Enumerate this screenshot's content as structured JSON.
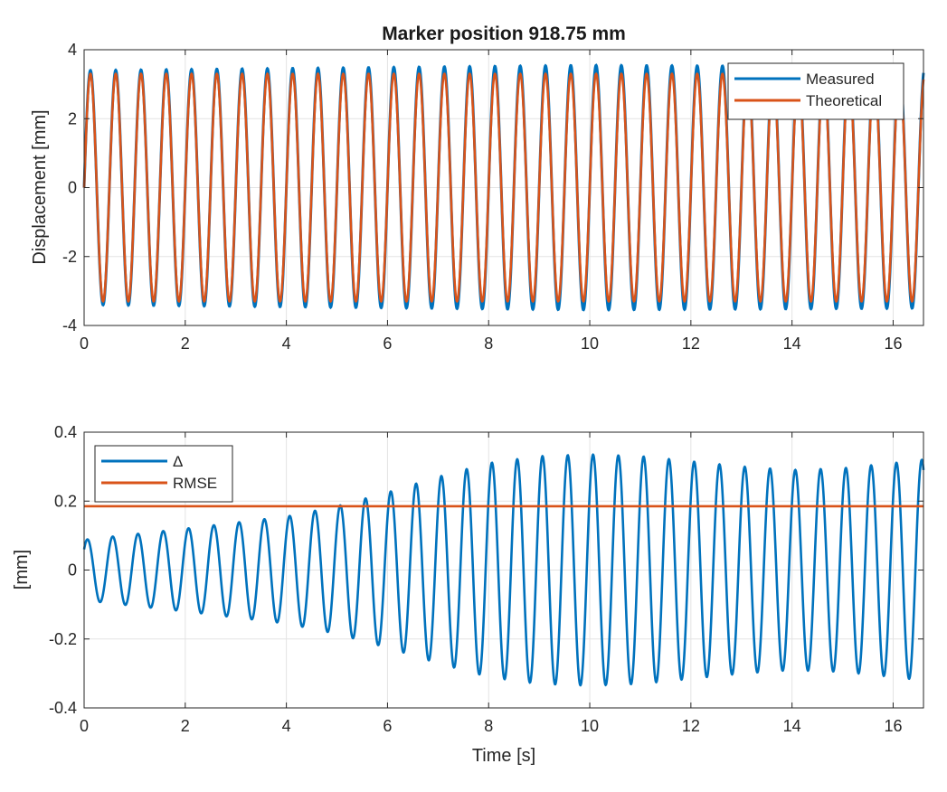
{
  "chart_data": [
    {
      "type": "line",
      "title": "Marker position 918.75 mm",
      "xlabel": "",
      "ylabel": "Displacement [mm]",
      "xlim": [
        0,
        16.6
      ],
      "ylim": [
        -4,
        4
      ],
      "xticks": [
        "0",
        "2",
        "4",
        "6",
        "8",
        "10",
        "12",
        "14",
        "16"
      ],
      "yticks": [
        "-4",
        "-2",
        "0",
        "2",
        "4"
      ],
      "grid": true,
      "legend_position": "top-right",
      "frequency_hz": 2.0,
      "series": [
        {
          "name": "Measured",
          "color": "#0072BD",
          "amplitude_start": 3.4,
          "amplitude_peak": 3.55,
          "amplitude_end": 3.5
        },
        {
          "name": "Theoretical",
          "color": "#D95319",
          "amplitude": 3.3
        }
      ]
    },
    {
      "type": "line",
      "title": "",
      "xlabel": "Time [s]",
      "ylabel": "[mm]",
      "xlim": [
        0,
        16.6
      ],
      "ylim": [
        -0.4,
        0.4
      ],
      "xticks": [
        "0",
        "2",
        "4",
        "6",
        "8",
        "10",
        "12",
        "14",
        "16"
      ],
      "yticks": [
        "-0.4",
        "-0.2",
        "0",
        "0.2",
        "0.4"
      ],
      "grid": true,
      "legend_position": "top-left",
      "series": [
        {
          "name": "Δ",
          "color": "#0072BD",
          "envelope_time": [
            0,
            2,
            4,
            5,
            6,
            7,
            8,
            9,
            10,
            11,
            12,
            13,
            14,
            15,
            16,
            16.6
          ],
          "envelope_amplitude": [
            0.088,
            0.12,
            0.155,
            0.185,
            0.225,
            0.27,
            0.31,
            0.33,
            0.335,
            0.33,
            0.315,
            0.3,
            0.29,
            0.295,
            0.31,
            0.32
          ]
        },
        {
          "name": "RMSE",
          "color": "#D95319",
          "value": 0.185
        }
      ]
    }
  ]
}
